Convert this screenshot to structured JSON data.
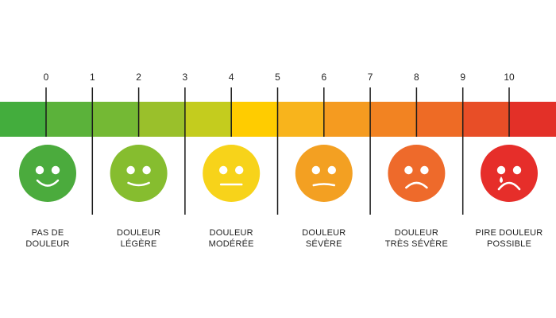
{
  "scale": {
    "numbers": [
      "0",
      "1",
      "2",
      "3",
      "4",
      "5",
      "6",
      "7",
      "8",
      "9",
      "10"
    ],
    "bar_colors": [
      "#43ad3d",
      "#5bb23a",
      "#74b934",
      "#9ac02b",
      "#c4cc1e",
      "#ffcc00",
      "#f8b41c",
      "#f59b20",
      "#f28322",
      "#ee6b25",
      "#e84e27",
      "#e33028"
    ]
  },
  "levels": [
    {
      "line1": "PAS DE",
      "line2": "DOULEUR",
      "face_color": "#4bab3d",
      "mood": "happy",
      "face": "happy-face-icon"
    },
    {
      "line1": "DOULEUR",
      "line2": "LÉGÈRE",
      "face_color": "#86bd2f",
      "mood": "smile",
      "face": "slight-smile-face-icon"
    },
    {
      "line1": "DOULEUR",
      "line2": "MODÉRÉE",
      "face_color": "#f7d31a",
      "mood": "neutral",
      "face": "neutral-face-icon"
    },
    {
      "line1": "DOULEUR",
      "line2": "SÉVÈRE",
      "face_color": "#f3a022",
      "mood": "uneasy",
      "face": "uneasy-face-icon"
    },
    {
      "line1": "DOULEUR",
      "line2": "TRÈS SÉVÈRE",
      "face_color": "#ee6a2b",
      "mood": "sad",
      "face": "sad-face-icon"
    },
    {
      "line1": "PIRE DOULEUR",
      "line2": "POSSIBLE",
      "face_color": "#e62e2a",
      "mood": "crying",
      "face": "crying-face-icon"
    }
  ]
}
